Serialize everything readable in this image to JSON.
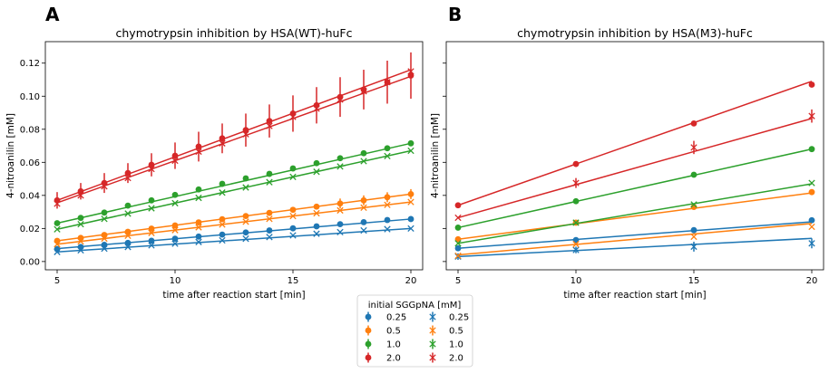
{
  "legend": {
    "title": "initial SGGpNA  [mM]",
    "labels": [
      "0.25",
      "0.5",
      "1.0",
      "2.0"
    ]
  },
  "colors": {
    "series": [
      "#1f77b4",
      "#ff7f0e",
      "#2ca02c",
      "#d62728"
    ]
  },
  "chart_data": [
    {
      "panel_label": "A",
      "type": "scatter",
      "title": "chymotrypsin inhibition by HSA(WT)-huFc",
      "xlabel": "time after reaction start [min]",
      "ylabel": "4-nitroanilin [mM]",
      "xlim": [
        4.5,
        20.5
      ],
      "ylim": [
        -0.005,
        0.133
      ],
      "xticks": [
        5,
        10,
        15,
        20
      ],
      "yticks": [
        0.0,
        0.02,
        0.04,
        0.06,
        0.08,
        0.1,
        0.12
      ],
      "ytick_labels": [
        "0.00",
        "0.02",
        "0.04",
        "0.06",
        "0.08",
        "0.10",
        "0.12"
      ],
      "x": [
        5,
        6,
        7,
        8,
        9,
        10,
        11,
        12,
        13,
        14,
        15,
        16,
        17,
        18,
        19,
        20
      ],
      "series": [
        {
          "marker": "circle",
          "color_index": 0,
          "values": [
            0.0075,
            0.0088,
            0.0101,
            0.0113,
            0.0126,
            0.0138,
            0.0151,
            0.0163,
            0.0176,
            0.0188,
            0.0201,
            0.0213,
            0.0226,
            0.0238,
            0.0251,
            0.0257
          ],
          "fit": [
            0.0078,
            0.0257
          ],
          "errors": []
        },
        {
          "marker": "x",
          "color_index": 0,
          "values": [
            0.0058,
            0.0068,
            0.0078,
            0.0088,
            0.0098,
            0.0108,
            0.0118,
            0.0128,
            0.0138,
            0.0148,
            0.0158,
            0.0168,
            0.0178,
            0.0188,
            0.0196,
            0.02
          ],
          "fit": [
            0.0058,
            0.02
          ],
          "errors": []
        },
        {
          "marker": "circle",
          "color_index": 1,
          "values": [
            0.0125,
            0.0143,
            0.0161,
            0.018,
            0.0199,
            0.0218,
            0.0237,
            0.0256,
            0.0275,
            0.0294,
            0.0313,
            0.0332,
            0.0351,
            0.037,
            0.0389,
            0.0408
          ],
          "fit": [
            0.0125,
            0.0408
          ],
          "errors": [
            0,
            0,
            0,
            0,
            0,
            0,
            0,
            0,
            0,
            0,
            0,
            0,
            0.003,
            0.003,
            0.003,
            0.003
          ]
        },
        {
          "marker": "x",
          "color_index": 1,
          "values": [
            0.0105,
            0.0122,
            0.0139,
            0.0156,
            0.0173,
            0.019,
            0.0207,
            0.0224,
            0.0241,
            0.0258,
            0.0275,
            0.0292,
            0.0309,
            0.0326,
            0.0343,
            0.036
          ],
          "fit": [
            0.0105,
            0.036
          ],
          "errors": []
        },
        {
          "marker": "circle",
          "color_index": 2,
          "values": [
            0.0232,
            0.0264,
            0.0296,
            0.0338,
            0.037,
            0.0403,
            0.0436,
            0.047,
            0.0503,
            0.053,
            0.0563,
            0.0595,
            0.0625,
            0.0655,
            0.0685,
            0.0715
          ],
          "fit": [
            0.0232,
            0.0715
          ],
          "errors": []
        },
        {
          "marker": "x",
          "color_index": 2,
          "values": [
            0.0195,
            0.0226,
            0.0258,
            0.029,
            0.0322,
            0.0353,
            0.0385,
            0.0417,
            0.0448,
            0.048,
            0.0512,
            0.0543,
            0.0575,
            0.0607,
            0.0638,
            0.067
          ],
          "fit": [
            0.0195,
            0.067
          ],
          "errors": []
        },
        {
          "marker": "circle",
          "color_index": 3,
          "values": [
            0.037,
            0.0425,
            0.0475,
            0.0535,
            0.0585,
            0.064,
            0.0695,
            0.0745,
            0.0795,
            0.085,
            0.0895,
            0.0945,
            0.0995,
            0.104,
            0.1085,
            0.1125
          ],
          "fit": [
            0.037,
            0.116
          ],
          "errors": [
            0.005,
            0.005,
            0.006,
            0.006,
            0.007,
            0.008,
            0.009,
            0.009,
            0.01,
            0.01,
            0.011,
            0.011,
            0.012,
            0.012,
            0.013,
            0.014
          ]
        },
        {
          "marker": "x",
          "color_index": 3,
          "values": [
            0.035,
            0.04,
            0.0455,
            0.0505,
            0.056,
            0.061,
            0.0665,
            0.0715,
            0.077,
            0.082,
            0.0875,
            0.0925,
            0.098,
            0.103,
            0.1085,
            0.115
          ],
          "fit": [
            0.0355,
            0.112
          ],
          "errors": []
        }
      ]
    },
    {
      "panel_label": "B",
      "type": "scatter",
      "title": "chymotrypsin inhibition by HSA(M3)-huFc",
      "xlabel": "time after reaction start [min]",
      "ylabel": "4-nitroanilin [mM]",
      "xlim": [
        4.5,
        20.5
      ],
      "ylim": [
        -0.005,
        0.133
      ],
      "xticks": [
        5,
        10,
        15,
        20
      ],
      "x": [
        5,
        10,
        15,
        20
      ],
      "series": [
        {
          "marker": "circle",
          "color_index": 0,
          "values": [
            0.008,
            0.013,
            0.019,
            0.025
          ],
          "fit": [
            0.008,
            0.024
          ],
          "errors": []
        },
        {
          "marker": "x",
          "color_index": 0,
          "values": [
            0.003,
            0.007,
            0.009,
            0.011
          ],
          "fit": [
            0.003,
            0.014
          ],
          "errors": [
            0.002,
            0.002,
            0.003,
            0.003
          ]
        },
        {
          "marker": "circle",
          "color_index": 1,
          "values": [
            0.0135,
            0.0235,
            0.033,
            0.042
          ],
          "fit": [
            0.0135,
            0.0415
          ],
          "errors": []
        },
        {
          "marker": "x",
          "color_index": 1,
          "values": [
            0.0035,
            0.0105,
            0.015,
            0.021
          ],
          "fit": [
            0.004,
            0.023
          ],
          "errors": []
        },
        {
          "marker": "circle",
          "color_index": 2,
          "values": [
            0.0205,
            0.0365,
            0.0525,
            0.068
          ],
          "fit": [
            0.0205,
            0.068
          ],
          "errors": []
        },
        {
          "marker": "x",
          "color_index": 2,
          "values": [
            0.011,
            0.0235,
            0.0345,
            0.0475
          ],
          "fit": [
            0.011,
            0.047
          ],
          "errors": []
        },
        {
          "marker": "circle",
          "color_index": 3,
          "values": [
            0.034,
            0.059,
            0.0835,
            0.107
          ],
          "fit": [
            0.034,
            0.109
          ],
          "errors": []
        },
        {
          "marker": "x",
          "color_index": 3,
          "values": [
            0.0265,
            0.0475,
            0.069,
            0.088
          ],
          "fit": [
            0.0265,
            0.0865
          ],
          "errors": [
            0,
            0.003,
            0.004,
            0.004
          ]
        }
      ]
    }
  ]
}
